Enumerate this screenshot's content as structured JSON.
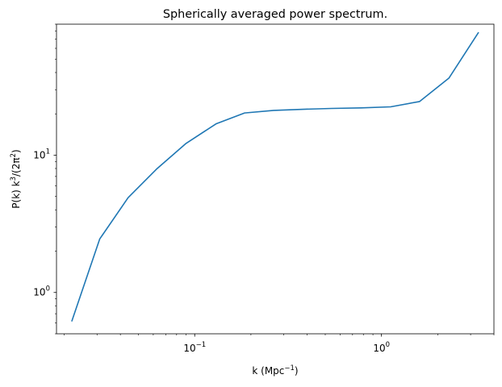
{
  "chart_data": {
    "type": "line",
    "title": "Spherically averaged power spectrum.",
    "xlabel": {
      "base": "k (Mpc",
      "sup": "−1",
      "tail": ")"
    },
    "ylabel": {
      "p1": "P(k) k",
      "sup1": "3",
      "p2": "/(2π",
      "sup2": "2",
      "p3": ")"
    },
    "xscale": "log",
    "yscale": "log",
    "xlim": [
      0.0182,
      4.0
    ],
    "ylim": [
      0.5,
      90
    ],
    "grid": false,
    "legend": "none",
    "color": "#1f77b4",
    "x_major_ticks": [
      {
        "value": 0.1,
        "base": "10",
        "exp": "−1"
      },
      {
        "value": 1,
        "base": "10",
        "exp": "0"
      }
    ],
    "y_major_ticks": [
      {
        "value": 1,
        "base": "10",
        "exp": "0"
      },
      {
        "value": 10,
        "base": "10",
        "exp": "1"
      }
    ],
    "series": [
      {
        "x": [
          0.022,
          0.031,
          0.044,
          0.063,
          0.09,
          0.13,
          0.185,
          0.265,
          0.38,
          0.54,
          0.78,
          1.12,
          1.6,
          2.3,
          3.3
        ],
        "y": [
          0.62,
          2.45,
          4.9,
          8.0,
          12.2,
          16.9,
          20.3,
          21.2,
          21.6,
          21.9,
          22.1,
          22.5,
          24.6,
          36.5,
          78
        ]
      }
    ]
  }
}
